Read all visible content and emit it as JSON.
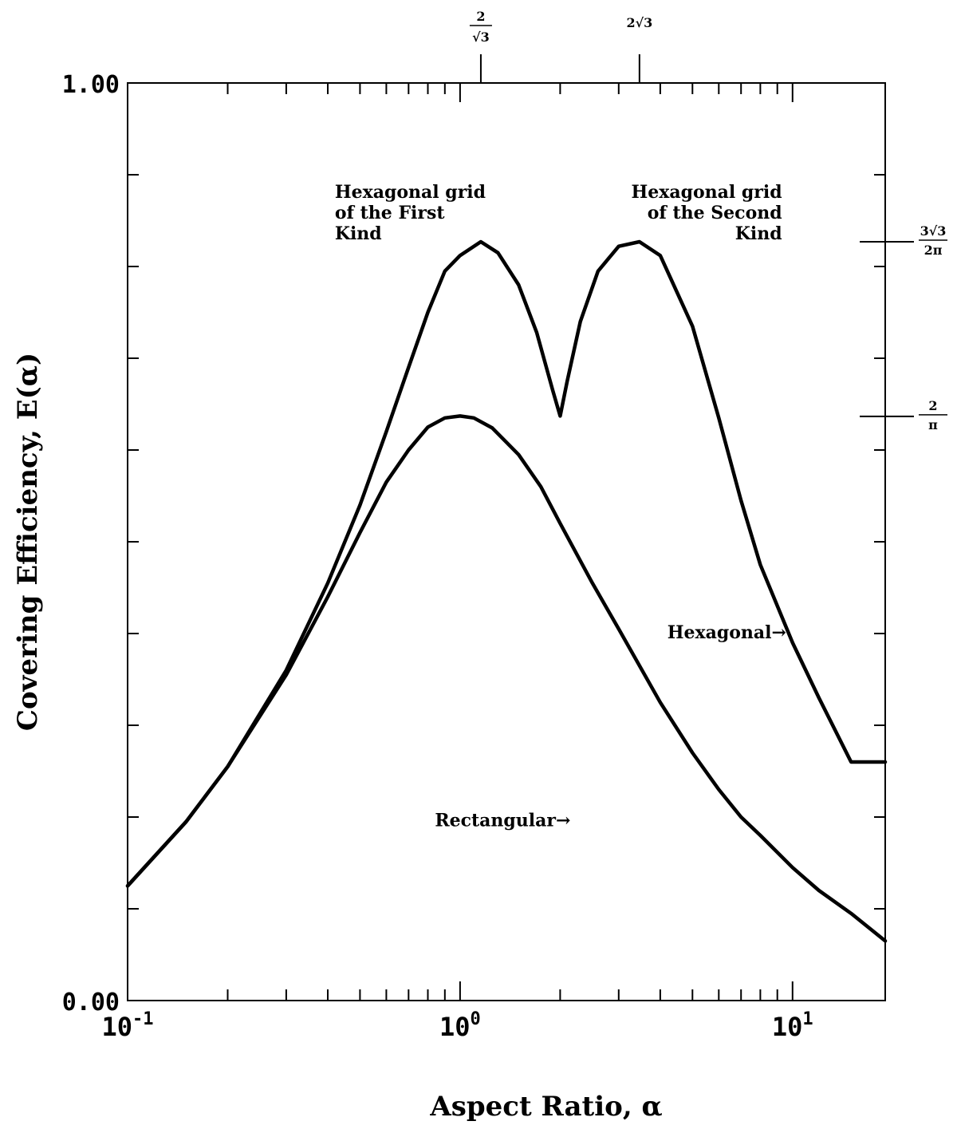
{
  "chart_data": {
    "type": "line",
    "title": "",
    "xlabel": "Aspect Ratio, α",
    "ylabel": "Covering Efficiency, E(α)",
    "x_scale": "log",
    "xlim": [
      0.1,
      19.0
    ],
    "ylim": [
      0.0,
      1.0
    ],
    "x_tick_labels": [
      {
        "value": 0.1,
        "base": "10",
        "exp": "-1"
      },
      {
        "value": 1,
        "base": "10",
        "exp": "0"
      },
      {
        "value": 10,
        "base": "10",
        "exp": "1"
      }
    ],
    "y_tick_labels": [
      {
        "value": 0.0,
        "label": "0.00"
      },
      {
        "value": 1.0,
        "label": "1.00"
      }
    ],
    "top_markers": [
      {
        "value": 1.1547,
        "label_num": "2",
        "label_den": "√3",
        "kind": "frac"
      },
      {
        "value": 3.4641,
        "label": "2√3",
        "kind": "plain"
      }
    ],
    "right_markers": [
      {
        "value": 0.827,
        "label_num": "3√3",
        "label_den": "2π"
      },
      {
        "value": 0.6366,
        "label_num": "2",
        "label_den": "π"
      }
    ],
    "annotations": [
      {
        "lines": [
          "Hexagonal grid",
          "of the First",
          "Kind"
        ],
        "anchor": "start",
        "x": 0.42,
        "y": 0.875
      },
      {
        "lines": [
          "Hexagonal grid",
          "of the Second",
          "Kind"
        ],
        "anchor": "end",
        "x": 9.3,
        "y": 0.875
      },
      {
        "lines": [
          "Hexagonal→"
        ],
        "anchor": "start",
        "x": 4.2,
        "y": 0.395
      },
      {
        "lines": [
          "Rectangular→"
        ],
        "anchor": "start",
        "x": 0.84,
        "y": 0.19
      }
    ],
    "series": [
      {
        "name": "Hexagonal",
        "x": [
          0.1,
          0.15,
          0.2,
          0.3,
          0.4,
          0.5,
          0.6,
          0.7,
          0.8,
          0.9,
          1.0,
          1.1547,
          1.3,
          1.5,
          1.7,
          1.9,
          2.0,
          2.1,
          2.3,
          2.6,
          3.0,
          3.4641,
          4.0,
          5.0,
          6.0,
          7.0,
          8.0,
          10.0,
          12.0,
          15.0,
          19.0
        ],
        "y": [
          0.125,
          0.195,
          0.255,
          0.36,
          0.455,
          0.54,
          0.62,
          0.69,
          0.75,
          0.795,
          0.812,
          0.827,
          0.815,
          0.78,
          0.728,
          0.665,
          0.637,
          0.675,
          0.74,
          0.795,
          0.822,
          0.827,
          0.812,
          0.735,
          0.635,
          0.545,
          0.475,
          0.39,
          0.33,
          0.26,
          0.26
        ]
      },
      {
        "name": "Rectangular",
        "x": [
          0.1,
          0.15,
          0.2,
          0.3,
          0.4,
          0.5,
          0.6,
          0.7,
          0.8,
          0.9,
          1.0,
          1.1,
          1.25,
          1.5,
          1.75,
          2.0,
          2.5,
          3.0,
          4.0,
          5.0,
          6.0,
          7.0,
          8.0,
          10.0,
          12.0,
          15.0,
          19.0
        ],
        "y": [
          0.125,
          0.195,
          0.255,
          0.355,
          0.44,
          0.51,
          0.565,
          0.6,
          0.625,
          0.635,
          0.637,
          0.635,
          0.624,
          0.595,
          0.56,
          0.52,
          0.455,
          0.405,
          0.325,
          0.27,
          0.23,
          0.2,
          0.18,
          0.145,
          0.12,
          0.095,
          0.065
        ]
      }
    ],
    "grid": false,
    "legend": "none"
  }
}
